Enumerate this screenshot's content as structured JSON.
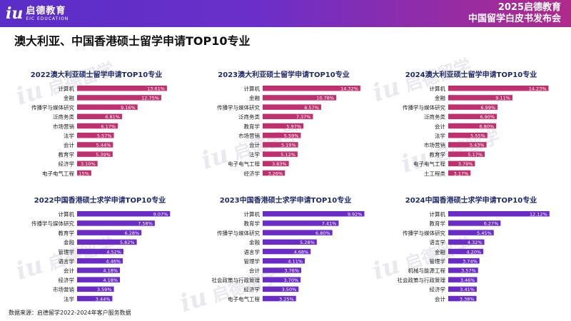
{
  "header": {
    "logo_cn": "启德教育",
    "logo_en": "EIC EDUCATION",
    "brand_line1": "2025启德教育",
    "brand_line2": "中国留学白皮书发布会",
    "colors": {
      "start": "#5a2ec8",
      "end": "#b02a8c"
    }
  },
  "page_title": "澳大利亚、中国香港硕士留学申请TOP10专业",
  "watermark": {
    "mark": "iu",
    "text": "启德留学",
    "sub": "EIC EDUCATION"
  },
  "footnote": "数据来源：启德留学2022-2024年客户服务数据",
  "chart_data": [
    {
      "type": "bar",
      "orientation": "horizontal",
      "title": "2022澳大利亚硕士留学申请TOP10专业",
      "categories": [
        "计算机",
        "金融",
        "传播学与媒体研究",
        "泛商务类",
        "市场营销",
        "法学",
        "会计",
        "教育学",
        "经济学",
        "电子电气工程"
      ],
      "values": [
        13.61,
        12.75,
        9.16,
        6.81,
        6.17,
        5.57,
        5.44,
        5.39,
        3.1,
        2.15
      ],
      "labels": [
        "13.61%",
        "12.75%",
        "9.16%",
        "6.81%",
        "6.17%",
        "5.57%",
        "5.44%",
        "5.39%",
        "3.10%",
        "2.15%"
      ],
      "color": "#c0306f",
      "xlim": [
        0,
        16
      ]
    },
    {
      "type": "bar",
      "orientation": "horizontal",
      "title": "2023澳大利亚硕士留学申请TOP10专业",
      "categories": [
        "计算机",
        "金融",
        "传播学与媒体研究",
        "泛商务类",
        "教育学",
        "市场营销",
        "会计",
        "法学",
        "电子电气工程",
        "经济学"
      ],
      "values": [
        14.32,
        10.78,
        8.57,
        7.37,
        5.97,
        5.59,
        5.19,
        5.12,
        3.83,
        3.26
      ],
      "labels": [
        "14.32%",
        "10.78%",
        "8.57%",
        "7.37%",
        "5.97%",
        "5.59%",
        "5.19%",
        "5.12%",
        "3.83%",
        "3.26%"
      ],
      "color": "#c0306f",
      "xlim": [
        0,
        16
      ]
    },
    {
      "type": "bar",
      "orientation": "horizontal",
      "title": "2024澳大利亚硕士留学申请TOP10专业",
      "categories": [
        "计算机",
        "金融",
        "传播学与媒体研究",
        "泛商务类",
        "会计",
        "法学",
        "市场营销",
        "教育学",
        "电子电气工程",
        "土工程类"
      ],
      "values": [
        14.23,
        9.11,
        6.99,
        6.9,
        6.8,
        5.55,
        5.43,
        5.17,
        3.79,
        3.17
      ],
      "labels": [
        "14.23%",
        "9.11%",
        "6.99%",
        "6.90%",
        "6.80%",
        "5.55%",
        "5.43%",
        "5.17%",
        "3.79%",
        "3.17%"
      ],
      "color": "#c0306f",
      "xlim": [
        0,
        16
      ]
    },
    {
      "type": "bar",
      "orientation": "horizontal",
      "title": "2022中国香港硕士求学申请TOP10专业",
      "categories": [
        "计算机",
        "传播学与媒体研究",
        "教育学",
        "金融",
        "管理学",
        "语言学",
        "会计",
        "经济学",
        "市场营销",
        "法学"
      ],
      "values": [
        9.07,
        7.58,
        6.28,
        5.82,
        4.52,
        4.46,
        4.18,
        4.18,
        3.59,
        3.44
      ],
      "labels": [
        "9.07%",
        "7.58%",
        "6.28%",
        "5.82%",
        "4.52%",
        "4.46%",
        "4.18%",
        "4.18%",
        "3.59%",
        "3.44%"
      ],
      "color": "#6a2bc9",
      "xlim": [
        0,
        11
      ]
    },
    {
      "type": "bar",
      "orientation": "horizontal",
      "title": "2023中国香港硕士求学申请TOP10专业",
      "categories": [
        "计算机",
        "教育学",
        "传播学与媒体研究",
        "金融",
        "语言学",
        "管理学",
        "会计",
        "社会政策与行政管理",
        "经济学",
        "电子电气工程"
      ],
      "values": [
        9.92,
        7.41,
        6.8,
        5.28,
        4.68,
        4.11,
        3.76,
        3.7,
        3.5,
        3.25
      ],
      "labels": [
        "9.92%",
        "7.41%",
        "6.80%",
        "5.28%",
        "4.68%",
        "4.11%",
        "3.76%",
        "3.70%",
        "3.50%",
        "3.25%"
      ],
      "color": "#6a2bc9",
      "xlim": [
        0,
        11
      ]
    },
    {
      "type": "bar",
      "orientation": "horizontal",
      "title": "2024中国香港硕士求学申请TOP10专业",
      "categories": [
        "计算机",
        "教育学",
        "传播学与媒体研究",
        "语言学",
        "金融",
        "管理学",
        "机械与能源工程",
        "社会政策与行政管理",
        "经济学",
        "会计"
      ],
      "values": [
        12.12,
        6.27,
        5.45,
        4.32,
        4.2,
        3.74,
        3.57,
        3.46,
        3.41,
        3.38
      ],
      "labels": [
        "12.12%",
        "6.27%",
        "5.45%",
        "4.32%",
        "4.20%",
        "3.74%",
        "3.57%",
        "3.46%",
        "3.41%",
        "3.38%"
      ],
      "color": "#6a2bc9",
      "xlim": [
        0,
        13.5
      ]
    }
  ]
}
